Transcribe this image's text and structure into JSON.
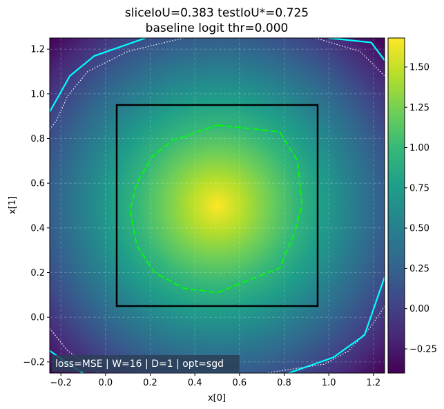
{
  "chart_data": {
    "type": "heatmap",
    "title_line1": "sliceIoU=0.383  testIoU*=0.725",
    "title_line2": "baseline logit thr=0.000",
    "xlabel": "x[0]",
    "ylabel": "x[1]",
    "xlim": [
      -0.25,
      1.25
    ],
    "ylim": [
      -0.25,
      1.25
    ],
    "x_ticks": [
      "−0.2",
      "0.0",
      "0.2",
      "0.4",
      "0.6",
      "0.8",
      "1.0",
      "1.2"
    ],
    "x_tick_values": [
      -0.2,
      0.0,
      0.2,
      0.4,
      0.6,
      0.8,
      1.0,
      1.2
    ],
    "y_ticks": [
      "−0.2",
      "0.0",
      "0.2",
      "0.4",
      "0.6",
      "0.8",
      "1.0",
      "1.2"
    ],
    "y_tick_values": [
      -0.2,
      0.0,
      0.2,
      0.4,
      0.6,
      0.8,
      1.0,
      1.2
    ],
    "grid": true,
    "colormap": "viridis",
    "colorbar": {
      "range": [
        -0.4,
        1.68
      ],
      "ticks": [
        "−0.25",
        "0.00",
        "0.25",
        "0.50",
        "0.75",
        "1.00",
        "1.25",
        "1.50"
      ],
      "tick_values": [
        -0.25,
        0.0,
        0.25,
        0.5,
        0.75,
        1.0,
        1.25,
        1.5
      ]
    },
    "field": {
      "center": [
        0.5,
        0.5
      ],
      "peak": 1.68,
      "min_corner": -0.4
    },
    "true_region_box": {
      "x0": 0.05,
      "y0": 0.05,
      "x1": 0.95,
      "y1": 0.95,
      "color": "#000000"
    },
    "predicted_contour": {
      "color": "#00ff00",
      "points": [
        [
          0.5,
          0.86
        ],
        [
          0.78,
          0.83
        ],
        [
          0.86,
          0.7
        ],
        [
          0.88,
          0.5
        ],
        [
          0.84,
          0.36
        ],
        [
          0.78,
          0.22
        ],
        [
          0.65,
          0.17
        ],
        [
          0.5,
          0.11
        ],
        [
          0.35,
          0.13
        ],
        [
          0.22,
          0.2
        ],
        [
          0.14,
          0.32
        ],
        [
          0.11,
          0.48
        ],
        [
          0.14,
          0.6
        ],
        [
          0.21,
          0.72
        ],
        [
          0.3,
          0.79
        ]
      ]
    },
    "threshold_contours": {
      "color": "#00ffff",
      "lines": [
        [
          [
            -0.25,
            0.92
          ],
          [
            -0.21,
            0.99
          ],
          [
            -0.16,
            1.08
          ],
          [
            -0.05,
            1.17
          ],
          [
            0.18,
            1.25
          ]
        ],
        [
          [
            1.0,
            1.25
          ],
          [
            1.19,
            1.23
          ],
          [
            1.25,
            1.15
          ]
        ],
        [
          [
            1.25,
            0.18
          ],
          [
            1.16,
            -0.08
          ],
          [
            1.02,
            -0.18
          ],
          [
            0.82,
            -0.25
          ]
        ],
        [
          [
            -0.25,
            -0.15
          ],
          [
            -0.15,
            -0.22
          ],
          [
            -0.1,
            -0.25
          ]
        ]
      ]
    },
    "dotted_contours": {
      "color": "#ffffff",
      "lines": [
        [
          [
            -0.25,
            0.84
          ],
          [
            -0.22,
            0.88
          ],
          [
            -0.17,
            0.99
          ],
          [
            -0.08,
            1.1
          ],
          [
            0.1,
            1.19
          ],
          [
            0.35,
            1.25
          ]
        ],
        [
          [
            0.94,
            1.25
          ],
          [
            1.14,
            1.19
          ],
          [
            1.25,
            1.08
          ]
        ],
        [
          [
            1.25,
            0.05
          ],
          [
            1.19,
            -0.04
          ],
          [
            1.09,
            -0.15
          ],
          [
            0.98,
            -0.21
          ],
          [
            0.72,
            -0.25
          ]
        ],
        [
          [
            -0.25,
            -0.05
          ],
          [
            -0.17,
            -0.15
          ],
          [
            -0.03,
            -0.25
          ]
        ]
      ]
    },
    "annotation": "loss=MSE | W=16 | D=1 | opt=sgd"
  }
}
